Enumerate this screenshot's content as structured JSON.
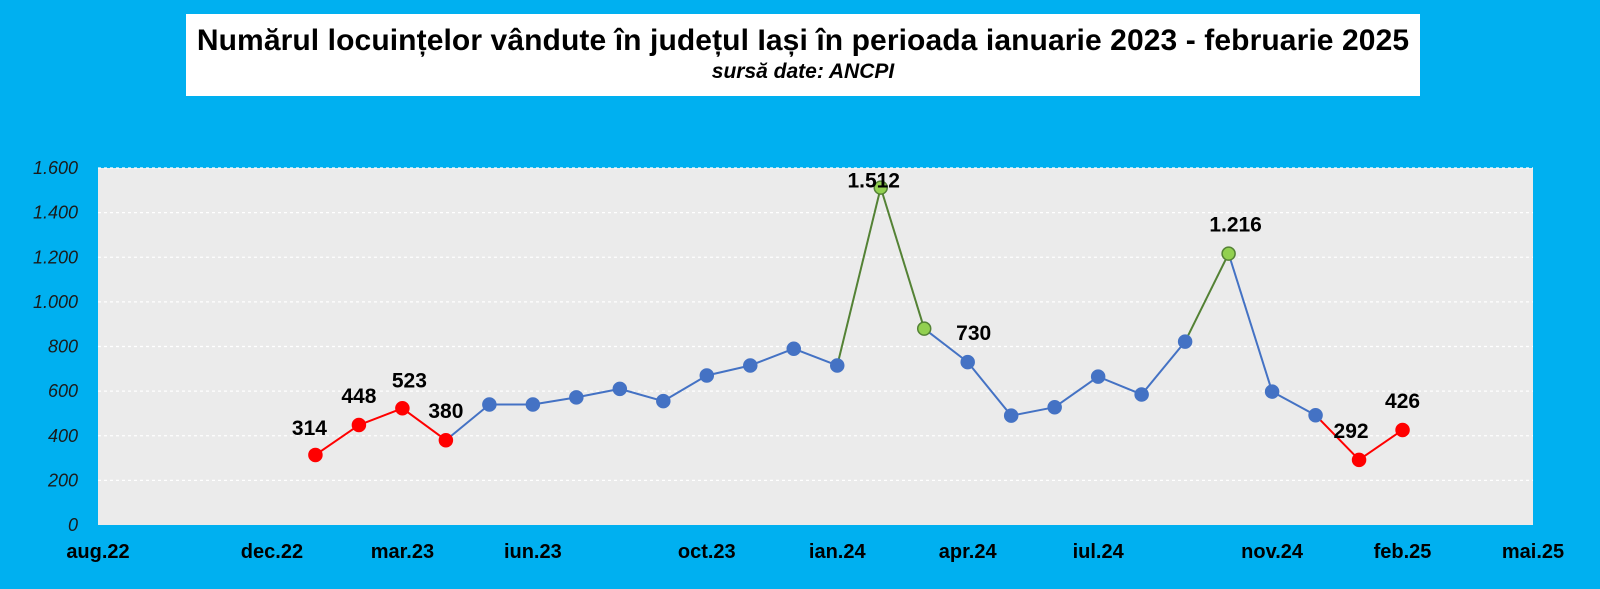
{
  "colors": {
    "background": "#00b0f0",
    "plot_area": "#ebebeb",
    "series_normal": "#4472c4",
    "series_low": "#ff0000",
    "series_high": "#92d050",
    "series_high_line": "#548235"
  },
  "chart_data": {
    "type": "line",
    "title": "Numărul locuințelor vândute în județul Iași în perioada ianuarie 2023 - februarie 2025",
    "subtitle": "sursă date: ANCPI",
    "xlabel": "",
    "ylabel": "",
    "ylim": [
      0,
      1600
    ],
    "yticks": [
      0,
      200,
      400,
      600,
      800,
      1000,
      1200,
      1400,
      1600
    ],
    "ytick_labels": [
      "0",
      "200",
      "400",
      "600",
      "800",
      "1.000",
      "1.200",
      "1.400",
      "1.600"
    ],
    "xlim": [
      "2022-08",
      "2025-05"
    ],
    "xticks": [
      "2022-08",
      "2022-12",
      "2023-03",
      "2023-06",
      "2023-10",
      "2024-01",
      "2024-04",
      "2024-07",
      "2024-11",
      "2025-02",
      "2025-05"
    ],
    "xtick_labels": [
      "aug.22",
      "dec.22",
      "mar.23",
      "iun.23",
      "oct.23",
      "ian.24",
      "apr.24",
      "iul.24",
      "nov.24",
      "feb.25",
      "mai.25"
    ],
    "grid": true,
    "legend": "none",
    "points": [
      {
        "x": "2023-01",
        "y": 314,
        "style": "low",
        "label": "314"
      },
      {
        "x": "2023-02",
        "y": 448,
        "style": "low",
        "label": "448"
      },
      {
        "x": "2023-03",
        "y": 523,
        "style": "low",
        "label": "523"
      },
      {
        "x": "2023-04",
        "y": 380,
        "style": "low",
        "label": "380"
      },
      {
        "x": "2023-05",
        "y": 540,
        "style": "normal",
        "label": ""
      },
      {
        "x": "2023-06",
        "y": 540,
        "style": "normal",
        "label": ""
      },
      {
        "x": "2023-07",
        "y": 572,
        "style": "normal",
        "label": ""
      },
      {
        "x": "2023-08",
        "y": 610,
        "style": "normal",
        "label": ""
      },
      {
        "x": "2023-09",
        "y": 555,
        "style": "normal",
        "label": ""
      },
      {
        "x": "2023-10",
        "y": 670,
        "style": "normal",
        "label": ""
      },
      {
        "x": "2023-11",
        "y": 715,
        "style": "normal",
        "label": ""
      },
      {
        "x": "2023-12",
        "y": 790,
        "style": "normal",
        "label": ""
      },
      {
        "x": "2024-01",
        "y": 715,
        "style": "normal",
        "label": ""
      },
      {
        "x": "2024-02",
        "y": 1512,
        "style": "high",
        "label": "1.512"
      },
      {
        "x": "2024-03",
        "y": 880,
        "style": "high",
        "label": ""
      },
      {
        "x": "2024-04",
        "y": 730,
        "style": "normal",
        "label": "730"
      },
      {
        "x": "2024-05",
        "y": 490,
        "style": "normal",
        "label": ""
      },
      {
        "x": "2024-06",
        "y": 528,
        "style": "normal",
        "label": ""
      },
      {
        "x": "2024-07",
        "y": 665,
        "style": "normal",
        "label": ""
      },
      {
        "x": "2024-08",
        "y": 585,
        "style": "normal",
        "label": ""
      },
      {
        "x": "2024-09",
        "y": 822,
        "style": "normal",
        "label": ""
      },
      {
        "x": "2024-10",
        "y": 1216,
        "style": "high",
        "label": "1.216"
      },
      {
        "x": "2024-11",
        "y": 598,
        "style": "normal",
        "label": ""
      },
      {
        "x": "2024-12",
        "y": 492,
        "style": "normal",
        "label": ""
      },
      {
        "x": "2025-01",
        "y": 292,
        "style": "low",
        "label": "292"
      },
      {
        "x": "2025-02",
        "y": 426,
        "style": "low",
        "label": "426"
      }
    ]
  }
}
